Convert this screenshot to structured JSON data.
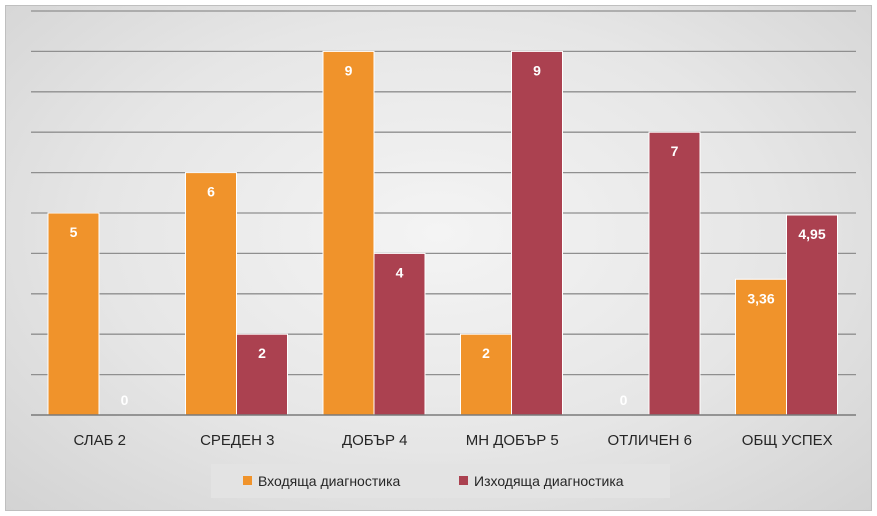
{
  "colors": {
    "series1": "#f0932b",
    "series2": "#ab4150",
    "grid": "#8f8f8f",
    "legend_bg": "#e3e3e3"
  },
  "chart_data": {
    "type": "bar",
    "categories": [
      "СЛАБ 2",
      "СРЕДЕН 3",
      "ДОБЪР 4",
      "МН ДОБЪР 5",
      "ОТЛИЧЕН 6",
      "ОБЩ УСПЕХ"
    ],
    "series": [
      {
        "name": "Входяща диагностика",
        "values": [
          5,
          6,
          9,
          2,
          0,
          3.36
        ],
        "labels": [
          "5",
          "6",
          "9",
          "2",
          "0",
          "3,36"
        ]
      },
      {
        "name": "Изходяща диагностика",
        "values": [
          0,
          2,
          4,
          9,
          7,
          4.95
        ],
        "labels": [
          "0",
          "2",
          "4",
          "9",
          "7",
          "4,95"
        ]
      }
    ],
    "ylim": [
      0,
      10
    ],
    "grid": true,
    "legend": "bottom",
    "title": "",
    "xlabel": "",
    "ylabel": ""
  }
}
